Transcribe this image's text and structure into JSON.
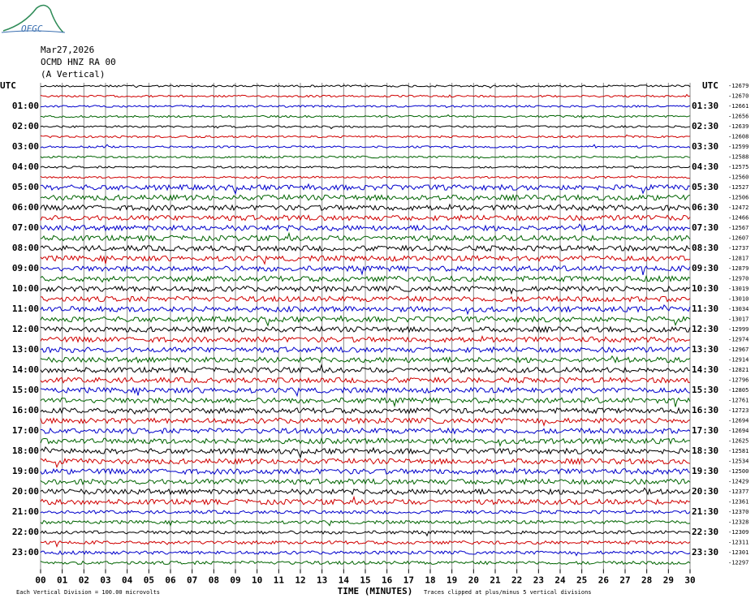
{
  "chart_data": {
    "type": "helicorder",
    "logo": "OFGC",
    "header": [
      "Mar27,2026",
      "OCMD HNZ RA 00",
      "(A Vertical)"
    ],
    "left_labels": [
      "UTC",
      "01:00",
      "02:00",
      "03:00",
      "04:00",
      "05:00",
      "06:00",
      "07:00",
      "08:00",
      "09:00",
      "10:00",
      "11:00",
      "12:00",
      "13:00",
      "14:00",
      "15:00",
      "16:00",
      "17:00",
      "18:00",
      "19:00",
      "20:00",
      "21:00",
      "22:00",
      "23:00"
    ],
    "right_labels": [
      "UTC",
      "01:30",
      "02:30",
      "03:30",
      "04:30",
      "05:30",
      "06:30",
      "07:30",
      "08:30",
      "09:30",
      "10:30",
      "11:30",
      "12:30",
      "13:30",
      "14:30",
      "15:30",
      "16:30",
      "17:30",
      "18:30",
      "19:30",
      "20:30",
      "21:30",
      "22:30",
      "23:30"
    ],
    "trace_offsets": [
      -12679,
      -12670,
      -12661,
      -12656,
      -12639,
      -12608,
      -12599,
      -12588,
      -12575,
      -12560,
      -12527,
      -12506,
      -12472,
      -12466,
      -12567,
      -12607,
      -12737,
      -12817,
      -12879,
      -12970,
      -13019,
      -13010,
      -13034,
      -13017,
      -12999,
      -12974,
      -12967,
      -12914,
      -12821,
      -12796,
      -12805,
      -12761,
      -12723,
      -12694,
      -12694,
      -12625,
      -12581,
      -12534,
      -12500,
      -12429,
      -12377,
      -12361,
      -12370,
      -12328,
      -12309,
      -12311,
      -12301,
      -12297
    ],
    "colors": [
      "#000000",
      "#d00000",
      "#0000cc",
      "#006400"
    ],
    "xlim": [
      0,
      30
    ],
    "xticks": [
      {
        "value": 0,
        "label": "00"
      },
      {
        "value": 1,
        "label": "01"
      },
      {
        "value": 2,
        "label": "02"
      },
      {
        "value": 3,
        "label": "03"
      },
      {
        "value": 4,
        "label": "04"
      },
      {
        "value": 5,
        "label": "05"
      },
      {
        "value": 6,
        "label": "06"
      },
      {
        "value": 7,
        "label": "07"
      },
      {
        "value": 8,
        "label": "08"
      },
      {
        "value": 9,
        "label": "09"
      },
      10,
      11,
      12,
      13,
      14,
      15,
      16,
      17,
      18,
      19,
      20,
      21,
      22,
      23,
      24,
      25,
      26,
      27,
      28,
      29,
      30
    ],
    "xlabel": "TIME (MINUTES)",
    "note_left": "Each Vertical Division =  100.00 microvolts",
    "note_right": "Traces clipped at plus/minus 5 vertical divisions",
    "grid": true
  }
}
